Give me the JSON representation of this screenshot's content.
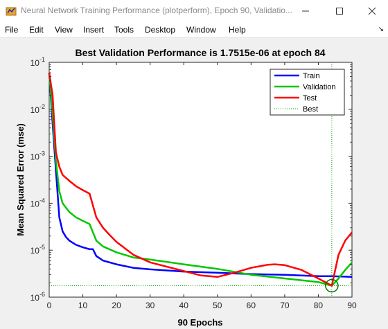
{
  "window": {
    "title": "Neural Network Training Performance (plotperform), Epoch 90, Validatio...",
    "minimize_icon": "minimize-icon",
    "maximize_icon": "maximize-icon",
    "close_icon": "close-icon"
  },
  "menu": [
    "File",
    "Edit",
    "View",
    "Insert",
    "Tools",
    "Desktop",
    "Window",
    "Help"
  ],
  "dock_icon": "dock-arrow-icon",
  "chart_data": {
    "type": "line",
    "title": "Best Validation Performance is 1.7515e-06 at epoch 84",
    "xlabel": "90 Epochs",
    "ylabel": "Mean Squared Error  (mse)",
    "xlim": [
      0,
      90
    ],
    "ylim": [
      1e-06,
      0.1
    ],
    "yscale": "log",
    "xticks": [
      "0",
      "10",
      "20",
      "30",
      "40",
      "50",
      "60",
      "70",
      "80",
      "90"
    ],
    "yticks": [
      {
        "base": "10",
        "exp": "-6"
      },
      {
        "base": "10",
        "exp": "-5"
      },
      {
        "base": "10",
        "exp": "-4"
      },
      {
        "base": "10",
        "exp": "-3"
      },
      {
        "base": "10",
        "exp": "-2"
      },
      {
        "base": "10",
        "exp": "-1"
      }
    ],
    "grid": false,
    "legend_position": "top-right",
    "best": {
      "epoch": 84,
      "value": 1.7515e-06
    },
    "series": [
      {
        "name": "Train",
        "color": "#0000ff",
        "style": "solid",
        "x": [
          0,
          1,
          2,
          3,
          4,
          5,
          6,
          8,
          10,
          12,
          13,
          14,
          16,
          20,
          25,
          30,
          40,
          50,
          60,
          70,
          80,
          84,
          90
        ],
        "y": [
          0.06,
          0.005,
          0.0005,
          5e-05,
          2.5e-05,
          1.9e-05,
          1.6e-05,
          1.3e-05,
          1.15e-05,
          1.05e-05,
          1.05e-05,
          7.5e-06,
          6e-06,
          5e-06,
          4.2e-06,
          3.9e-06,
          3.5e-06,
          3.3e-06,
          3.1e-06,
          3e-06,
          2.8e-06,
          2.8e-06,
          2.7e-06
        ]
      },
      {
        "name": "Validation",
        "color": "#00c800",
        "style": "solid",
        "x": [
          0,
          1,
          2,
          3,
          4,
          5,
          6,
          8,
          10,
          12,
          13,
          14,
          16,
          20,
          25,
          30,
          40,
          50,
          60,
          70,
          80,
          84,
          86,
          88,
          90
        ],
        "y": [
          0.06,
          0.008,
          0.0008,
          0.00018,
          0.0001,
          8e-05,
          6.5e-05,
          5e-05,
          4.2e-05,
          3.6e-05,
          2.4e-05,
          1.6e-05,
          1.2e-05,
          9e-06,
          7e-06,
          6.3e-06,
          5e-06,
          4e-06,
          3e-06,
          2.5e-06,
          2.1e-06,
          1.7515e-06,
          2.5e-06,
          3.8e-06,
          5.5e-06
        ]
      },
      {
        "name": "Test",
        "color": "#ff0000",
        "style": "solid",
        "x": [
          0,
          1,
          2,
          3,
          4,
          6,
          8,
          10,
          12,
          13,
          14,
          16,
          18,
          20,
          25,
          30,
          40,
          45,
          50,
          55,
          60,
          65,
          67,
          70,
          75,
          80,
          84,
          86,
          88,
          90
        ],
        "y": [
          0.06,
          0.02,
          0.0012,
          0.0006,
          0.0004,
          0.0003,
          0.00023,
          0.00019,
          0.00016,
          9e-05,
          5e-05,
          3e-05,
          2.1e-05,
          1.5e-05,
          8e-06,
          5.5e-06,
          3.6e-06,
          2.9e-06,
          2.7e-06,
          3.3e-06,
          4.2e-06,
          4.9e-06,
          5e-06,
          4.8e-06,
          3.8e-06,
          2.5e-06,
          1.75e-06,
          8e-06,
          1.6e-05,
          2.4e-05
        ]
      },
      {
        "name": "Best",
        "color": "#00aa00",
        "style": "dotted"
      }
    ]
  }
}
